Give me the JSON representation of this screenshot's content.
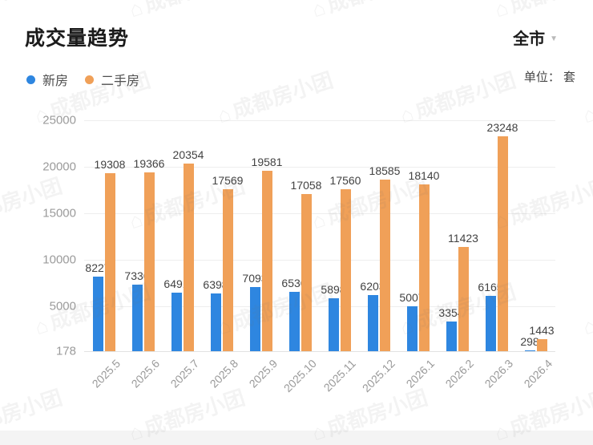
{
  "header": {
    "title": "成交量趋势",
    "region_selector": {
      "label": "全市"
    },
    "unit_label": "单位： 套"
  },
  "legend": {
    "items": [
      {
        "label": "新房",
        "color": "#2E86E0"
      },
      {
        "label": "二手房",
        "color": "#F0A058"
      }
    ]
  },
  "watermark": {
    "text": "成都房小团",
    "icon": "house-icon"
  },
  "colors": {
    "new_house": "#2E86E0",
    "second_hand": "#F0A058",
    "grid": "#eeeeee",
    "axis_text": "#9b9b9b",
    "value_label": "#424242"
  },
  "chart_data": {
    "type": "bar",
    "title": "成交量趋势",
    "unit": "套",
    "categories": [
      "2025.5",
      "2025.6",
      "2025.7",
      "2025.8",
      "2025.9",
      "2025.10",
      "2025.11",
      "2025.12",
      "2026.1",
      "2026.2",
      "2026.3",
      "2026.4"
    ],
    "series": [
      {
        "name": "新房",
        "color": "#2E86E0",
        "values": [
          8227,
          7336,
          6491,
          6398,
          7093,
          6536,
          5898,
          6203,
          5007,
          3354,
          6165,
          298
        ]
      },
      {
        "name": "二手房",
        "color": "#F0A058",
        "values": [
          19308,
          19366,
          20354,
          17569,
          19581,
          17058,
          17560,
          18585,
          18140,
          11423,
          23248,
          1443
        ]
      }
    ],
    "ylim": [
      178,
      25000
    ],
    "y_ticks": [
      25000,
      20000,
      15000,
      10000,
      5000,
      178
    ],
    "grid": true,
    "legend_position": "top-left",
    "value_labels": true,
    "x_label_rotate": 45
  }
}
